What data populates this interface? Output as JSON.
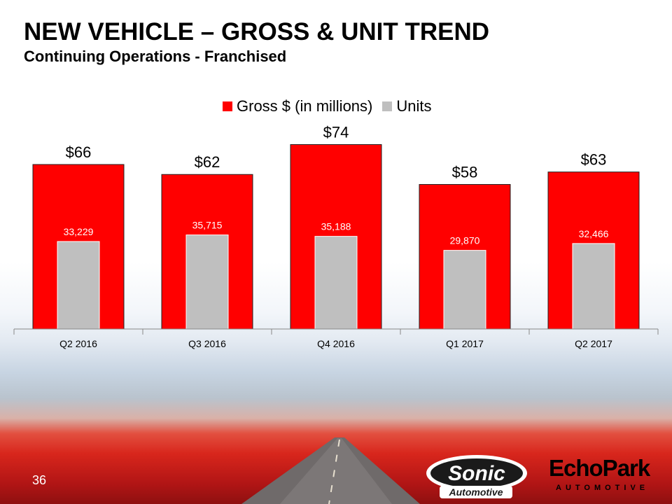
{
  "title": "NEW VEHICLE – GROSS & UNIT TREND",
  "subtitle": "Continuing Operations - Franchised",
  "page_number": "36",
  "colors": {
    "gross": "#ff0000",
    "units": "#bfbfbf"
  },
  "chart_data": {
    "type": "bar",
    "title": "NEW VEHICLE – GROSS & UNIT TREND",
    "categories": [
      "Q2 2016",
      "Q3 2016",
      "Q4 2016",
      "Q1 2017",
      "Q2 2017"
    ],
    "series": [
      {
        "name": "Gross $ (in millions)",
        "values": [
          66,
          62,
          74,
          58,
          63
        ],
        "labels": [
          "$66",
          "$62",
          "$74",
          "$58",
          "$63"
        ]
      },
      {
        "name": "Units",
        "values": [
          33229,
          35715,
          35188,
          29870,
          32466
        ],
        "labels": [
          "33,229",
          "35,715",
          "35,188",
          "29,870",
          "32,466"
        ]
      }
    ],
    "legend_position": "top-center",
    "xlabel": "",
    "ylabel": ""
  },
  "logos": {
    "sonic": {
      "line1": "Sonic",
      "line2": "Automotive"
    },
    "echopark": {
      "line1": "EchoPark",
      "line2": "AUTOMOTIVE"
    }
  }
}
